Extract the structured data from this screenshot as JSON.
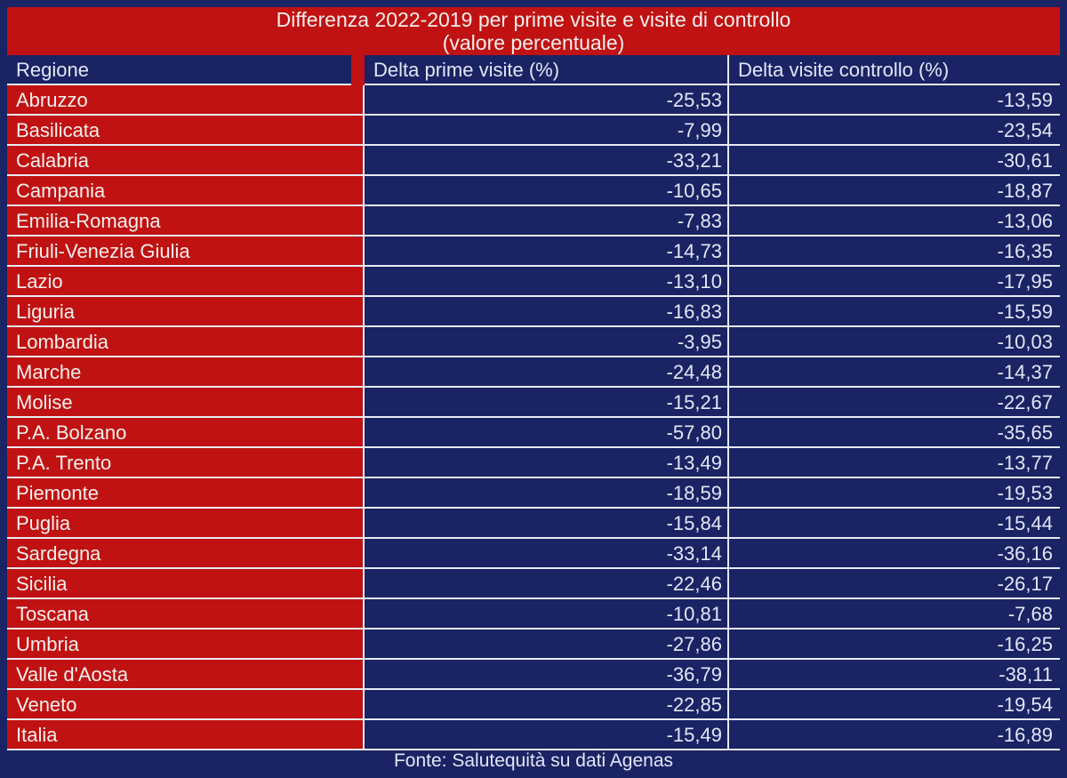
{
  "title": {
    "line1": "Differenza 2022-2019 per prime visite e visite di controllo",
    "line2": "(valore percentuale)"
  },
  "columns": {
    "region": "Regione",
    "delta_prime": "Delta prime visite (%)",
    "delta_controllo": "Delta visite controllo (%)"
  },
  "footer": "Fonte: Salutequità su dati Agenas",
  "colors": {
    "red": "#c01212",
    "navy": "#1a2363",
    "grid_line": "#e8ebf5"
  },
  "chart_data": {
    "type": "table",
    "title": "Differenza 2022-2019 per prime visite e visite di controllo (valore percentuale)",
    "columns": [
      "Regione",
      "Delta prime visite (%)",
      "Delta visite controllo (%)"
    ],
    "rows": [
      [
        "Abruzzo",
        "-25,53",
        "-13,59"
      ],
      [
        "Basilicata",
        "-7,99",
        "-23,54"
      ],
      [
        "Calabria",
        "-33,21",
        "-30,61"
      ],
      [
        "Campania",
        "-10,65",
        "-18,87"
      ],
      [
        "Emilia-Romagna",
        "-7,83",
        "-13,06"
      ],
      [
        "Friuli-Venezia Giulia",
        "-14,73",
        "-16,35"
      ],
      [
        "Lazio",
        "-13,10",
        "-17,95"
      ],
      [
        "Liguria",
        "-16,83",
        "-15,59"
      ],
      [
        "Lombardia",
        "-3,95",
        "-10,03"
      ],
      [
        "Marche",
        "-24,48",
        "-14,37"
      ],
      [
        "Molise",
        "-15,21",
        "-22,67"
      ],
      [
        "P.A. Bolzano",
        "-57,80",
        "-35,65"
      ],
      [
        "P.A. Trento",
        "-13,49",
        "-13,77"
      ],
      [
        "Piemonte",
        "-18,59",
        "-19,53"
      ],
      [
        "Puglia",
        "-15,84",
        "-15,44"
      ],
      [
        "Sardegna",
        "-33,14",
        "-36,16"
      ],
      [
        "Sicilia",
        "-22,46",
        "-26,17"
      ],
      [
        "Toscana",
        "-10,81",
        "-7,68"
      ],
      [
        "Umbria",
        "-27,86",
        "-16,25"
      ],
      [
        "Valle d'Aosta",
        "-36,79",
        "-38,11"
      ],
      [
        "Veneto",
        "-22,85",
        "-19,54"
      ],
      [
        "Italia",
        "-15,49",
        "-16,89"
      ]
    ],
    "source": "Fonte: Salutequità su dati Agenas",
    "value_format": "italian decimal comma, percent delta",
    "legend_position": "none",
    "grid": true
  }
}
